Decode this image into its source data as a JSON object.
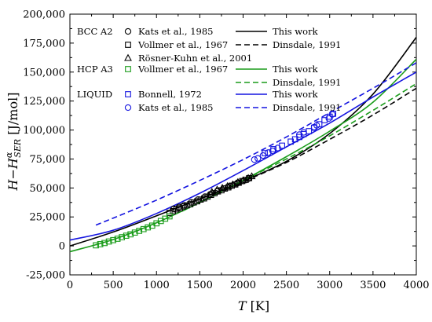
{
  "chart_data": {
    "type": "line",
    "xlabel": "T [K]",
    "ylabel": "H−H^α_SER [J/mol]",
    "xlim": [
      0,
      4000
    ],
    "ylim": [
      -25000,
      200000
    ],
    "xticks": [
      "0",
      "500",
      "1000",
      "1500",
      "2000",
      "2500",
      "3000",
      "3500",
      "4000"
    ],
    "yticks": [
      "-25,000",
      "0",
      "25,000",
      "50,000",
      "75,000",
      "100,000",
      "125,000",
      "150,000",
      "175,000",
      "200,000"
    ],
    "grid": false,
    "legend": {
      "placement": "top-left",
      "groups": [
        {
          "label": "BCC A2",
          "color": "#000000",
          "experiments": [
            {
              "name": "Kats et al., 1985",
              "marker": "circle"
            },
            {
              "name": "Vollmer et al., 1967",
              "marker": "square"
            },
            {
              "name": "Rösner-Kuhn et al., 2001",
              "marker": "triangle"
            }
          ],
          "models": [
            {
              "name": "This work",
              "style": "solid"
            },
            {
              "name": "Dinsdale, 1991",
              "style": "dashed"
            }
          ]
        },
        {
          "label": "HCP A3",
          "color": "#1a9c1a",
          "experiments": [
            {
              "name": "Vollmer et al., 1967",
              "marker": "square"
            }
          ],
          "models": [
            {
              "name": "This work",
              "style": "solid"
            },
            {
              "name": "Dinsdale, 1991",
              "style": "dashed"
            }
          ]
        },
        {
          "label": "LIQUID",
          "color": "#1515e0",
          "experiments": [
            {
              "name": "Bonnell, 1972",
              "marker": "square"
            },
            {
              "name": "Kats et al., 1985",
              "marker": "circle"
            }
          ],
          "models": [
            {
              "name": "This work",
              "style": "solid"
            },
            {
              "name": "Dinsdale, 1991",
              "style": "dashed"
            }
          ]
        }
      ]
    },
    "series": [
      {
        "phase": "BCC A2",
        "name": "This work",
        "style": "solid",
        "color": "#000000",
        "x": [
          0,
          500,
          1000,
          1500,
          2000,
          2500,
          3000,
          3500,
          4000
        ],
        "y": [
          0,
          12000,
          26000,
          40500,
          56000,
          73000,
          97000,
          131000,
          180000
        ]
      },
      {
        "phase": "BCC A2",
        "name": "Dinsdale, 1991",
        "style": "dashed",
        "color": "#000000",
        "x": [
          1650,
          2000,
          2500,
          3000,
          3500,
          4000
        ],
        "y": [
          45000,
          55500,
          72000,
          92000,
          113000,
          136000
        ]
      },
      {
        "phase": "HCP A3",
        "name": "This work",
        "style": "solid",
        "color": "#1a9c1a",
        "x": [
          0,
          500,
          1000,
          1500,
          2000,
          2500,
          3000,
          3500,
          4000
        ],
        "y": [
          -5000,
          5500,
          20000,
          37500,
          56500,
          77000,
          99000,
          124000,
          161000
        ]
      },
      {
        "phase": "HCP A3",
        "name": "Dinsdale, 1991",
        "style": "dashed",
        "color": "#1a9c1a",
        "x": [
          1300,
          2000,
          2500,
          3000,
          3500,
          4000
        ],
        "y": [
          30000,
          56500,
          75000,
          95000,
          117000,
          140000
        ]
      },
      {
        "phase": "LIQUID",
        "name": "This work",
        "style": "solid",
        "color": "#1515e0",
        "x": [
          0,
          500,
          1000,
          1500,
          2000,
          2500,
          3000,
          3500,
          4000
        ],
        "y": [
          5000,
          13500,
          28000,
          45500,
          65000,
          85500,
          106000,
          128500,
          150000
        ]
      },
      {
        "phase": "LIQUID",
        "name": "Dinsdale, 1991",
        "style": "dashed",
        "color": "#1515e0",
        "x": [
          300,
          500,
          1000,
          1500,
          2000,
          2500,
          3000,
          3500,
          4000
        ],
        "y": [
          18000,
          24000,
          39500,
          56500,
          74500,
          94000,
          115000,
          136000,
          158000
        ]
      }
    ],
    "points": [
      {
        "phase": "BCC A2",
        "name": "Kats et al., 1985",
        "marker": "circle",
        "color": "#000000",
        "x": [
          1200,
          1260,
          1320,
          1400,
          1480,
          1560,
          1620,
          1700,
          1780,
          1850,
          1930,
          2000,
          2060
        ],
        "y": [
          32000,
          33500,
          35000,
          37500,
          40000,
          42500,
          44500,
          47000,
          49500,
          51500,
          54000,
          56000,
          58000
        ]
      },
      {
        "phase": "BCC A2",
        "name": "Vollmer et al., 1967",
        "marker": "square",
        "color": "#000000",
        "x": [
          1150,
          1190,
          1230,
          1270,
          1310,
          1350,
          1390,
          1430,
          1470,
          1510,
          1550,
          1590,
          1630,
          1670,
          1710,
          1750,
          1790,
          1830,
          1870,
          1910,
          1950,
          1990,
          2030,
          2070
        ],
        "y": [
          28500,
          30000,
          31500,
          32500,
          34000,
          35000,
          36000,
          37500,
          38500,
          40000,
          41000,
          42500,
          44000,
          45500,
          47000,
          48000,
          49500,
          50500,
          52000,
          53000,
          54500,
          56000,
          57000,
          58500
        ]
      },
      {
        "phase": "BCC A2",
        "name": "Rösner-Kuhn et al., 2001",
        "marker": "triangle",
        "color": "#000000",
        "x": [
          1640,
          1700,
          1760,
          1820,
          1880,
          1940,
          2000,
          2060,
          2100
        ],
        "y": [
          46500,
          48500,
          50000,
          51500,
          53000,
          55000,
          56500,
          58500,
          60000
        ]
      },
      {
        "phase": "HCP A3",
        "name": "Vollmer et al., 1967",
        "marker": "square",
        "color": "#1a9c1a",
        "x": [
          300,
          350,
          400,
          450,
          500,
          550,
          600,
          650,
          700,
          750,
          800,
          850,
          900,
          950,
          1000,
          1050,
          1100,
          1150
        ],
        "y": [
          500,
          1500,
          2500,
          3800,
          5000,
          6200,
          7500,
          8800,
          10000,
          11500,
          13000,
          14500,
          16000,
          17500,
          19500,
          21500,
          23500,
          25500
        ]
      },
      {
        "phase": "LIQUID",
        "name": "Bonnell, 1972",
        "marker": "square",
        "color": "#1515e0",
        "x": [
          2250,
          2350,
          2450,
          2550,
          2600,
          2650,
          2700,
          2760,
          2820,
          2880,
          2940,
          3000,
          3040
        ],
        "y": [
          80000,
          83500,
          86500,
          90000,
          92000,
          94000,
          96500,
          99000,
          102000,
          105000,
          108500,
          111500,
          114000
        ]
      },
      {
        "phase": "LIQUID",
        "name": "Kats et al., 1985",
        "marker": "circle",
        "color": "#1515e0",
        "x": [
          2130,
          2170,
          2230,
          2290,
          2340,
          2400,
          2650,
          2700,
          2820,
          2850,
          2990,
          3030
        ],
        "y": [
          74500,
          75500,
          78000,
          80500,
          82000,
          84500,
          96000,
          98000,
          102500,
          104000,
          110000,
          113500
        ]
      }
    ]
  }
}
